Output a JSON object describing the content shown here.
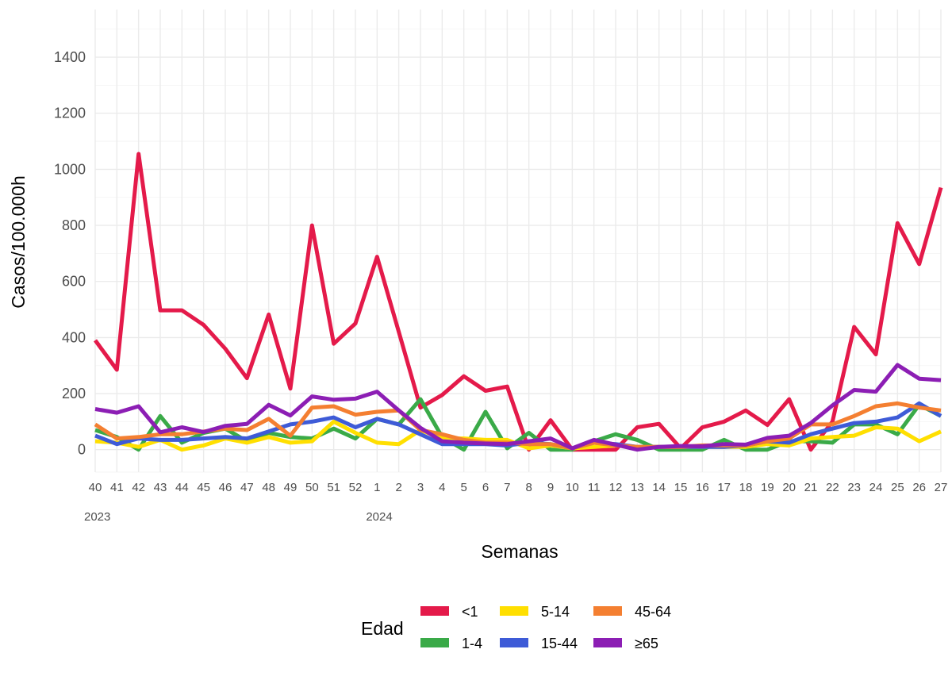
{
  "chart_data": {
    "type": "line",
    "xlabel": "Semanas",
    "ylabel": "Casos/100.000h",
    "ylim": [
      -80,
      1570
    ],
    "yticks": [
      0,
      200,
      400,
      600,
      800,
      1000,
      1200,
      1400
    ],
    "grid": true,
    "legend_title": "Edad",
    "legend_position": "bottom",
    "categories": [
      "40",
      "41",
      "42",
      "43",
      "44",
      "45",
      "46",
      "47",
      "48",
      "49",
      "50",
      "51",
      "52",
      "1",
      "2",
      "3",
      "4",
      "5",
      "6",
      "7",
      "8",
      "9",
      "10",
      "11",
      "12",
      "13",
      "14",
      "15",
      "16",
      "17",
      "18",
      "19",
      "20",
      "21",
      "22",
      "23",
      "24",
      "25",
      "26",
      "27"
    ],
    "year_labels": [
      {
        "label": "2023",
        "index": 0
      },
      {
        "label": "2024",
        "index": 13
      }
    ],
    "series": [
      {
        "name": "<1",
        "color": "#e41a4a",
        "values": [
          390,
          285,
          1055,
          497,
          497,
          445,
          360,
          255,
          482,
          218,
          800,
          378,
          450,
          688,
          420,
          150,
          195,
          262,
          210,
          225,
          0,
          105,
          0,
          0,
          0,
          80,
          92,
          5,
          80,
          100,
          140,
          88,
          180,
          0,
          100,
          438,
          340,
          808,
          662,
          935
        ]
      },
      {
        "name": "1-4",
        "color": "#3aaa48",
        "values": [
          70,
          45,
          0,
          120,
          25,
          60,
          75,
          30,
          60,
          45,
          40,
          75,
          40,
          110,
          90,
          180,
          45,
          0,
          135,
          5,
          60,
          0,
          0,
          30,
          55,
          35,
          0,
          0,
          0,
          35,
          0,
          0,
          30,
          30,
          25,
          90,
          90,
          55,
          160,
          120
        ]
      },
      {
        "name": "5-14",
        "color": "#ffdf00",
        "values": [
          30,
          25,
          10,
          35,
          0,
          15,
          40,
          25,
          45,
          25,
          30,
          100,
          60,
          25,
          20,
          70,
          40,
          40,
          35,
          35,
          5,
          15,
          5,
          10,
          15,
          10,
          10,
          10,
          10,
          10,
          10,
          20,
          15,
          40,
          45,
          50,
          80,
          75,
          30,
          65
        ]
      },
      {
        "name": "15-44",
        "color": "#3e5bd7",
        "values": [
          50,
          20,
          40,
          35,
          35,
          40,
          45,
          40,
          65,
          90,
          100,
          115,
          80,
          110,
          90,
          55,
          20,
          20,
          20,
          15,
          25,
          20,
          5,
          25,
          20,
          10,
          10,
          10,
          10,
          10,
          15,
          30,
          25,
          55,
          75,
          95,
          100,
          115,
          165,
          120
        ]
      },
      {
        "name": "45-64",
        "color": "#f47f31",
        "values": [
          90,
          40,
          45,
          55,
          55,
          65,
          75,
          70,
          110,
          50,
          150,
          155,
          125,
          135,
          140,
          70,
          55,
          35,
          25,
          25,
          20,
          20,
          5,
          25,
          15,
          10,
          10,
          10,
          15,
          15,
          15,
          30,
          40,
          90,
          90,
          120,
          155,
          165,
          150,
          140
        ]
      },
      {
        "name": "≥65",
        "color": "#8c1eb4",
        "values": [
          145,
          132,
          155,
          62,
          80,
          63,
          85,
          92,
          160,
          122,
          190,
          178,
          182,
          207,
          140,
          78,
          30,
          25,
          22,
          20,
          30,
          40,
          5,
          35,
          18,
          0,
          10,
          13,
          12,
          20,
          18,
          42,
          50,
          95,
          158,
          213,
          207,
          302,
          253,
          248
        ]
      }
    ]
  }
}
